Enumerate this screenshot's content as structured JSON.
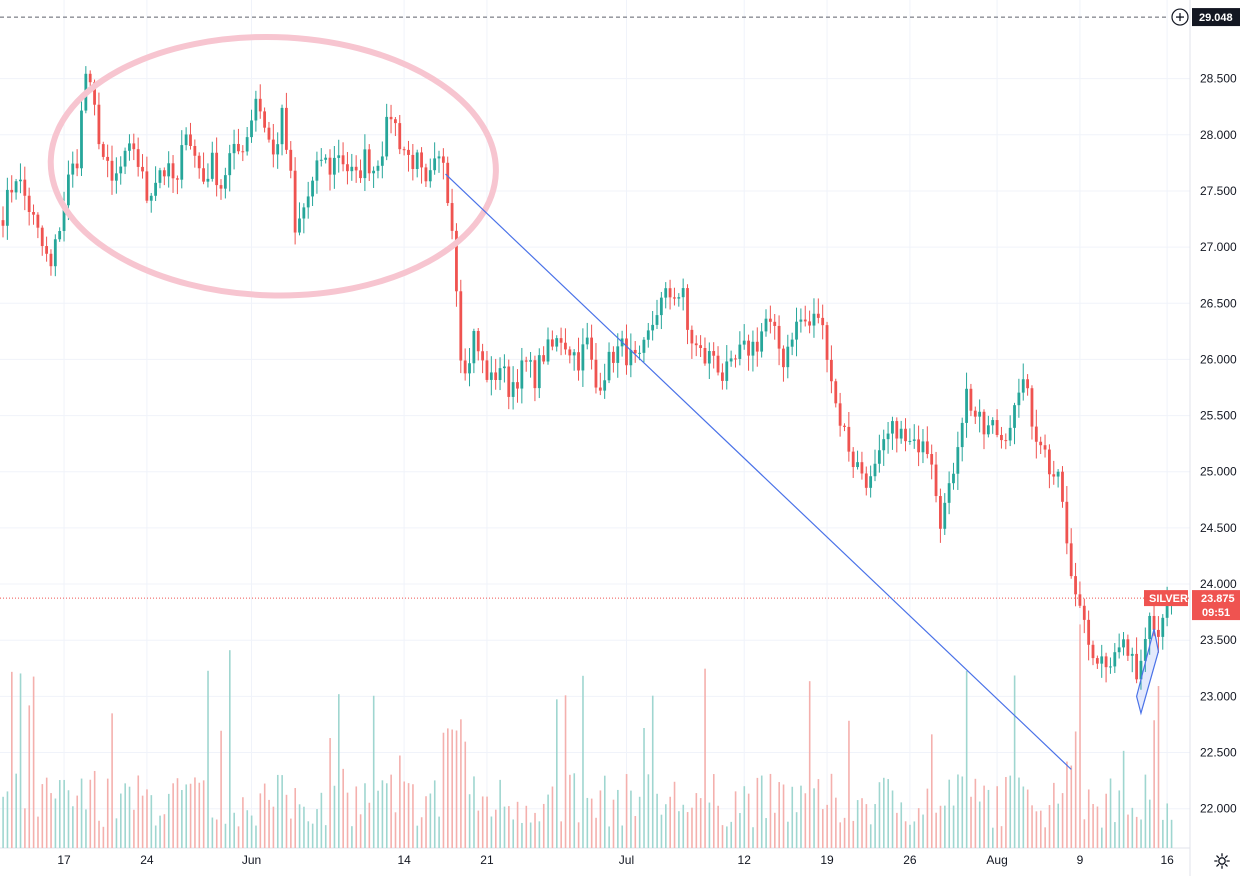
{
  "chart_data": {
    "type": "candlestick",
    "symbol": "SILVER",
    "last_price": "23.875",
    "countdown": "09:51",
    "high_line_label": "29.048",
    "high_line_value": 29.048,
    "ylim": [
      21.65,
      29.2
    ],
    "y_ticks": [
      22.0,
      22.5,
      23.0,
      23.5,
      24.0,
      24.5,
      25.0,
      25.5,
      26.0,
      26.5,
      27.0,
      27.5,
      28.0,
      28.5
    ],
    "y_tick_labels": [
      "22.000",
      "22.500",
      "23.000",
      "23.500",
      "24.000",
      "24.500",
      "25.000",
      "25.500",
      "26.000",
      "26.500",
      "27.000",
      "27.500",
      "28.000",
      "28.500"
    ],
    "x_ticks": [
      {
        "label": "17",
        "index": 14
      },
      {
        "label": "24",
        "index": 33
      },
      {
        "label": "Jun",
        "index": 57
      },
      {
        "label": "14",
        "index": 92
      },
      {
        "label": "21",
        "index": 111
      },
      {
        "label": "Jul",
        "index": 143
      },
      {
        "label": "12",
        "index": 170
      },
      {
        "label": "19",
        "index": 189
      },
      {
        "label": "26",
        "index": 208
      },
      {
        "label": "Aug",
        "index": 228
      },
      {
        "label": "9",
        "index": 247
      },
      {
        "label": "16",
        "index": 267
      }
    ],
    "anchors": [
      [
        0,
        27.3
      ],
      [
        3,
        27.65
      ],
      [
        6,
        27.35
      ],
      [
        9,
        27.0
      ],
      [
        11,
        26.8
      ],
      [
        13,
        27.2
      ],
      [
        15,
        27.6
      ],
      [
        17,
        27.8
      ],
      [
        19,
        28.55
      ],
      [
        21,
        28.2
      ],
      [
        23,
        27.8
      ],
      [
        25,
        27.55
      ],
      [
        27,
        27.7
      ],
      [
        30,
        27.9
      ],
      [
        33,
        27.45
      ],
      [
        36,
        27.7
      ],
      [
        38,
        27.65
      ],
      [
        40,
        27.55
      ],
      [
        42,
        28.1
      ],
      [
        44,
        27.8
      ],
      [
        46,
        27.6
      ],
      [
        48,
        27.75
      ],
      [
        50,
        27.55
      ],
      [
        52,
        27.8
      ],
      [
        54,
        27.85
      ],
      [
        56,
        28.0
      ],
      [
        58,
        28.35
      ],
      [
        60,
        28.1
      ],
      [
        62,
        27.8
      ],
      [
        64,
        28.15
      ],
      [
        66,
        27.6
      ],
      [
        67,
        27.1
      ],
      [
        69,
        27.35
      ],
      [
        71,
        27.55
      ],
      [
        73,
        27.8
      ],
      [
        75,
        27.7
      ],
      [
        77,
        27.85
      ],
      [
        79,
        27.7
      ],
      [
        81,
        27.6
      ],
      [
        83,
        27.8
      ],
      [
        85,
        27.7
      ],
      [
        87,
        27.9
      ],
      [
        89,
        28.2
      ],
      [
        91,
        27.95
      ],
      [
        93,
        27.8
      ],
      [
        95,
        27.75
      ],
      [
        97,
        27.5
      ],
      [
        99,
        27.7
      ],
      [
        101,
        27.8
      ],
      [
        103,
        27.2
      ],
      [
        104,
        26.7
      ],
      [
        105,
        26.1
      ],
      [
        106,
        25.85
      ],
      [
        108,
        26.2
      ],
      [
        110,
        25.95
      ],
      [
        112,
        25.8
      ],
      [
        114,
        25.95
      ],
      [
        116,
        25.75
      ],
      [
        118,
        25.85
      ],
      [
        120,
        25.95
      ],
      [
        122,
        25.85
      ],
      [
        124,
        26.05
      ],
      [
        126,
        26.1
      ],
      [
        128,
        26.2
      ],
      [
        130,
        26.1
      ],
      [
        132,
        26.0
      ],
      [
        134,
        26.15
      ],
      [
        136,
        25.75
      ],
      [
        138,
        25.9
      ],
      [
        140,
        26.05
      ],
      [
        142,
        26.1
      ],
      [
        144,
        26.0
      ],
      [
        146,
        25.95
      ],
      [
        148,
        26.2
      ],
      [
        150,
        26.45
      ],
      [
        152,
        26.55
      ],
      [
        154,
        26.6
      ],
      [
        156,
        26.55
      ],
      [
        157,
        26.25
      ],
      [
        159,
        26.1
      ],
      [
        161,
        26.0
      ],
      [
        163,
        26.05
      ],
      [
        165,
        25.85
      ],
      [
        167,
        25.9
      ],
      [
        169,
        26.05
      ],
      [
        171,
        26.1
      ],
      [
        173,
        26.15
      ],
      [
        175,
        26.35
      ],
      [
        177,
        26.2
      ],
      [
        179,
        26.0
      ],
      [
        181,
        26.25
      ],
      [
        183,
        26.35
      ],
      [
        185,
        26.3
      ],
      [
        187,
        26.4
      ],
      [
        189,
        26.1
      ],
      [
        191,
        25.6
      ],
      [
        193,
        25.35
      ],
      [
        195,
        25.1
      ],
      [
        197,
        25.0
      ],
      [
        199,
        24.9
      ],
      [
        201,
        25.1
      ],
      [
        203,
        25.3
      ],
      [
        205,
        25.4
      ],
      [
        207,
        25.25
      ],
      [
        209,
        25.2
      ],
      [
        211,
        25.35
      ],
      [
        213,
        25.15
      ],
      [
        215,
        24.6
      ],
      [
        217,
        24.8
      ],
      [
        219,
        25.3
      ],
      [
        221,
        25.7
      ],
      [
        223,
        25.5
      ],
      [
        225,
        25.35
      ],
      [
        227,
        25.4
      ],
      [
        229,
        25.3
      ],
      [
        231,
        25.45
      ],
      [
        233,
        25.6
      ],
      [
        234,
        25.9
      ],
      [
        236,
        25.4
      ],
      [
        238,
        25.3
      ],
      [
        240,
        25.05
      ],
      [
        242,
        25.05
      ],
      [
        244,
        24.35
      ],
      [
        246,
        23.8
      ],
      [
        247,
        23.9
      ],
      [
        249,
        23.5
      ],
      [
        251,
        23.4
      ],
      [
        253,
        23.35
      ],
      [
        255,
        23.3
      ],
      [
        257,
        23.45
      ],
      [
        259,
        23.3
      ],
      [
        260,
        23.05
      ],
      [
        261,
        23.25
      ],
      [
        263,
        23.7
      ],
      [
        265,
        23.55
      ],
      [
        267,
        23.85
      ],
      [
        268,
        23.875
      ]
    ],
    "annotations": [
      {
        "type": "ellipse",
        "label": "",
        "i": 62,
        "y": 27.72,
        "rx_bars": 37,
        "ry_value": 1.15,
        "color": "#f7c5d0"
      },
      {
        "type": "trendline",
        "from": [
          101.5,
          27.65
        ],
        "to": [
          245,
          22.35
        ],
        "color": "#4a72e8"
      },
      {
        "type": "channel",
        "points": [
          [
            260,
            23.0
          ],
          [
            264,
            23.6
          ],
          [
            265,
            23.4
          ],
          [
            261,
            22.85
          ]
        ],
        "color": "#4a72e8"
      }
    ],
    "grid": true,
    "colors": {
      "up": "#26a69a",
      "down": "#ef5350",
      "up_volume": "#9fd6d0",
      "down_volume": "#f4b0ad",
      "price_line": "#ef5350",
      "badge": "#ef5350",
      "dark_badge": "#131722",
      "trend": "#4a72e8",
      "circle": "#f7c5d0"
    }
  }
}
